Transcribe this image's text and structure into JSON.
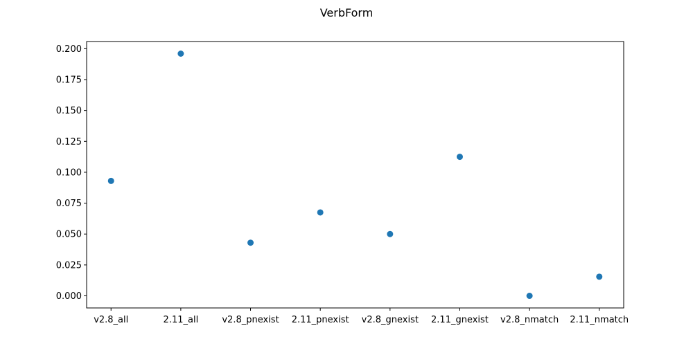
{
  "chart_data": {
    "type": "scatter",
    "title": "VerbForm",
    "xlabel": "",
    "ylabel": "",
    "categories": [
      "v2.8_all",
      "2.11_all",
      "v2.8_pnexist",
      "2.11_pnexist",
      "v2.8_gnexist",
      "2.11_gnexist",
      "v2.8_nmatch",
      "2.11_nmatch"
    ],
    "series": [
      {
        "values": [
          0.093,
          0.196,
          0.043,
          0.0675,
          0.05,
          0.1125,
          0.0,
          0.0155
        ]
      }
    ],
    "y_ticks": [
      "0.000",
      "0.025",
      "0.050",
      "0.075",
      "0.100",
      "0.125",
      "0.150",
      "0.175",
      "0.200"
    ],
    "ylim": [
      -0.0098,
      0.2058
    ],
    "grid": false,
    "marker_color": "#1f77b4"
  }
}
